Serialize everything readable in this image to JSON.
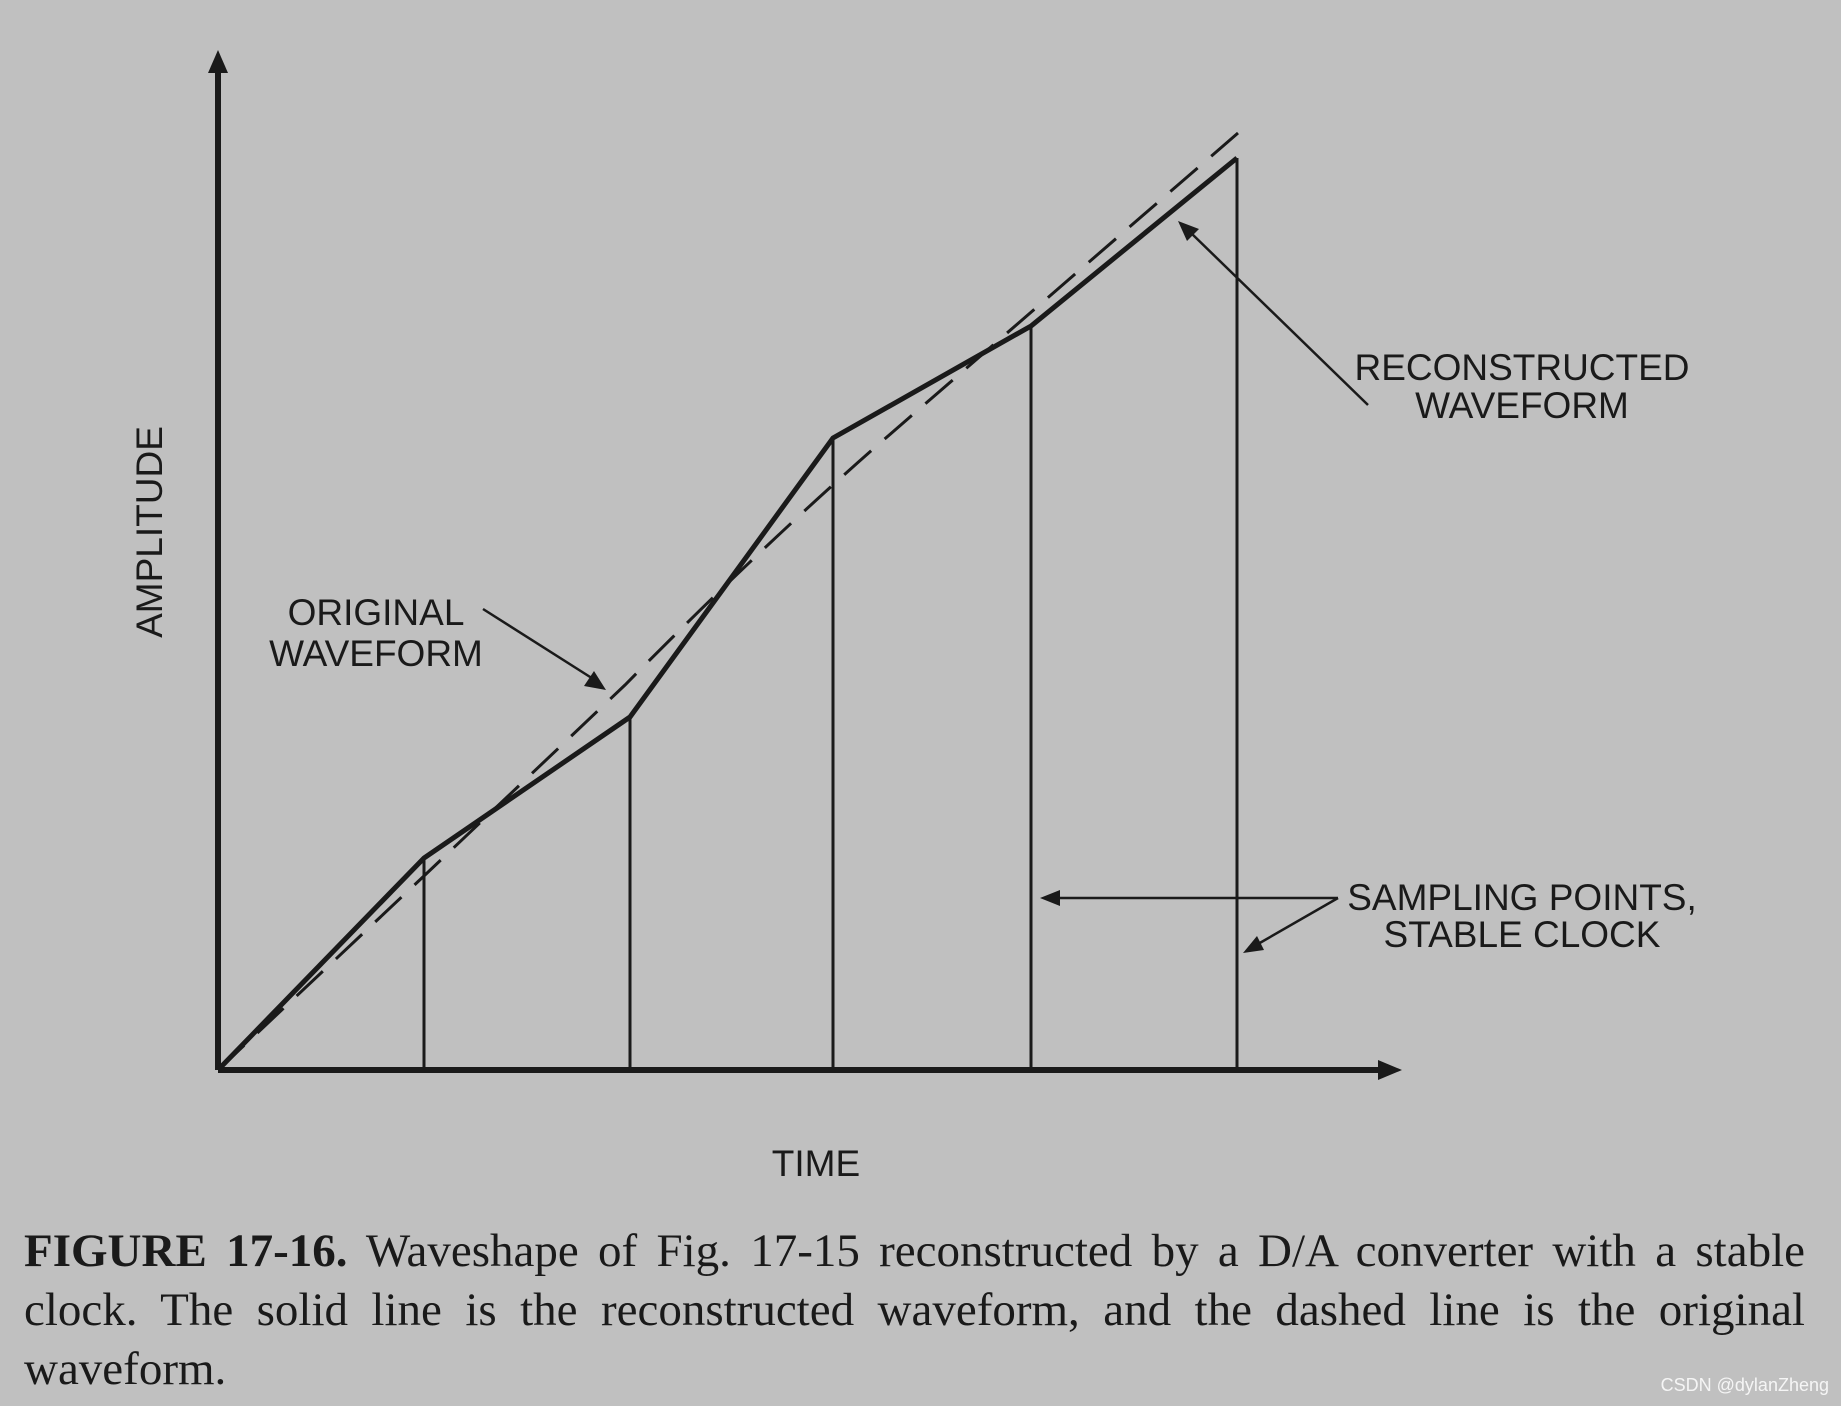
{
  "diagram": {
    "y_axis_label": "AMPLITUDE",
    "x_axis_label": "TIME",
    "callouts": {
      "original": [
        "ORIGINAL",
        "WAVEFORM"
      ],
      "reconstructed": [
        "RECONSTRUCTED",
        "WAVEFORM"
      ],
      "sampling": [
        "SAMPLING POINTS,",
        "STABLE CLOCK"
      ]
    },
    "series": {
      "original_waveform_style": "dashed",
      "reconstructed_waveform_style": "solid"
    },
    "sampling_point_count": 5,
    "colors": {
      "background": "#c0c0c0",
      "ink": "#1a1a1a"
    }
  },
  "caption": {
    "figure_number": "FIGURE 17-16.",
    "text": " Waveshape of Fig. 17-15 reconstructed by a D/A converter with a stable clock. The solid line is the reconstructed waveform, and the dashed line is the original waveform."
  },
  "watermark": "CSDN @dylanZheng"
}
